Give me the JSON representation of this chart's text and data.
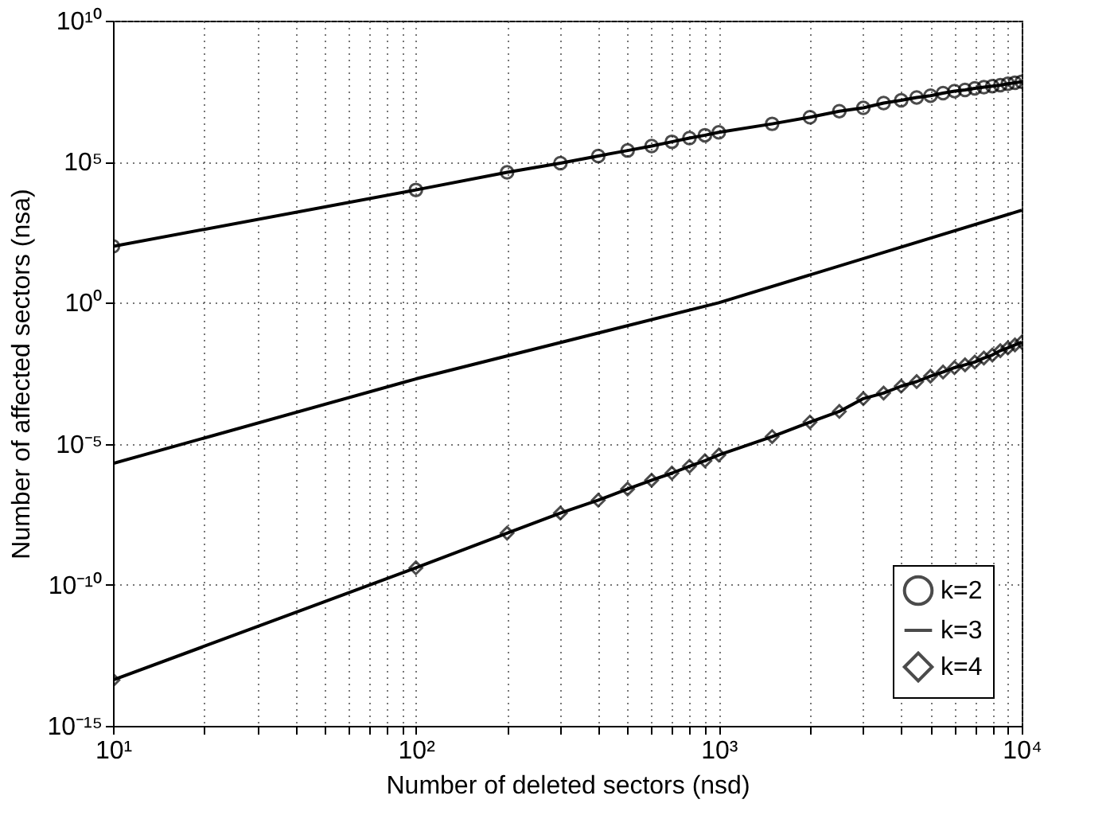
{
  "chart_data": {
    "type": "line",
    "xlabel": "Number of deleted sectors (nsd)",
    "ylabel": "Number of affected sectors (nsa)",
    "log": "xy",
    "grid": true,
    "legend": "bottom right",
    "line_style": "solid",
    "xlim": [
      10,
      10000
    ],
    "ylim": [
      1e-15,
      10000000000.0
    ],
    "xticks": [
      {
        "value": 10,
        "label": "10¹"
      },
      {
        "value": 20,
        "label": null
      },
      {
        "value": 30,
        "label": null
      },
      {
        "value": 40,
        "label": null
      },
      {
        "value": 50,
        "label": null
      },
      {
        "value": 60,
        "label": null
      },
      {
        "value": 70,
        "label": null
      },
      {
        "value": 80,
        "label": null
      },
      {
        "value": 90,
        "label": null
      },
      {
        "value": 100,
        "label": "10²"
      },
      {
        "value": 200,
        "label": null
      },
      {
        "value": 300,
        "label": null
      },
      {
        "value": 400,
        "label": null
      },
      {
        "value": 500,
        "label": null
      },
      {
        "value": 600,
        "label": null
      },
      {
        "value": 700,
        "label": null
      },
      {
        "value": 800,
        "label": null
      },
      {
        "value": 900,
        "label": null
      },
      {
        "value": 1000,
        "label": "10³"
      },
      {
        "value": 2000,
        "label": null
      },
      {
        "value": 3000,
        "label": null
      },
      {
        "value": 4000,
        "label": null
      },
      {
        "value": 5000,
        "label": null
      },
      {
        "value": 6000,
        "label": null
      },
      {
        "value": 7000,
        "label": null
      },
      {
        "value": 8000,
        "label": null
      },
      {
        "value": 9000,
        "label": null
      },
      {
        "value": 10000,
        "label": "10⁴"
      }
    ],
    "yticks": [
      {
        "value": 1e-15,
        "label": "10⁻¹⁵"
      },
      {
        "value": 1e-10,
        "label": "10⁻¹⁰"
      },
      {
        "value": 1e-05,
        "label": "10⁻⁵"
      },
      {
        "value": 1,
        "label": "10⁰"
      },
      {
        "value": 100000.0,
        "label": "10⁵"
      },
      {
        "value": 10000000000.0,
        "label": "10¹⁰"
      }
    ],
    "series": [
      {
        "name": "k=2",
        "color": "#000000",
        "marker": "circle",
        "x": [
          10,
          100,
          200,
          300,
          400,
          500,
          600,
          700,
          800,
          900,
          1000,
          1500,
          2000,
          2500,
          3000,
          3500,
          4000,
          4500,
          5000,
          5500,
          6000,
          6500,
          7000,
          7500,
          8000,
          8500,
          9000,
          9500,
          10000
        ],
        "values": [
          100.0,
          10000.0,
          42000.0,
          89000.0,
          160000.0,
          250000.0,
          360000.0,
          510000.0,
          690000.0,
          870000.0,
          1100000.0,
          2200000.0,
          3800000.0,
          6200000.0,
          8100000.0,
          12000000.0,
          15000000.0,
          19000000.0,
          22000000.0,
          27000000.0,
          32000000.0,
          35000000.0,
          40000000.0,
          44000000.0,
          48000000.0,
          52000000.0,
          58000000.0,
          63000000.0,
          68000000.0
        ]
      },
      {
        "name": "k=3",
        "color": "#000000",
        "marker": "none",
        "x": [
          10,
          100,
          1000,
          10000
        ],
        "values": [
          2e-06,
          0.002,
          1.0,
          1900.0
        ]
      },
      {
        "name": "k=4",
        "color": "#000000",
        "marker": "diamond",
        "x": [
          10,
          100,
          200,
          300,
          400,
          500,
          600,
          700,
          800,
          900,
          1000,
          1500,
          2000,
          2500,
          3000,
          3500,
          4000,
          4500,
          5000,
          5500,
          6000,
          6500,
          7000,
          7500,
          8000,
          8500,
          9000,
          9500,
          10000
        ],
        "values": [
          4.2e-14,
          4e-10,
          6.8e-09,
          3.5e-08,
          1e-07,
          2.5e-07,
          5.1e-07,
          9.1e-07,
          1.6e-06,
          2.5e-06,
          4e-06,
          1.8e-05,
          5.9e-05,
          0.00014,
          0.0004,
          0.00063,
          0.0011,
          0.0016,
          0.0025,
          0.0035,
          0.005,
          0.0063,
          0.0079,
          0.011,
          0.014,
          0.02,
          0.025,
          0.032,
          0.04
        ]
      }
    ]
  }
}
